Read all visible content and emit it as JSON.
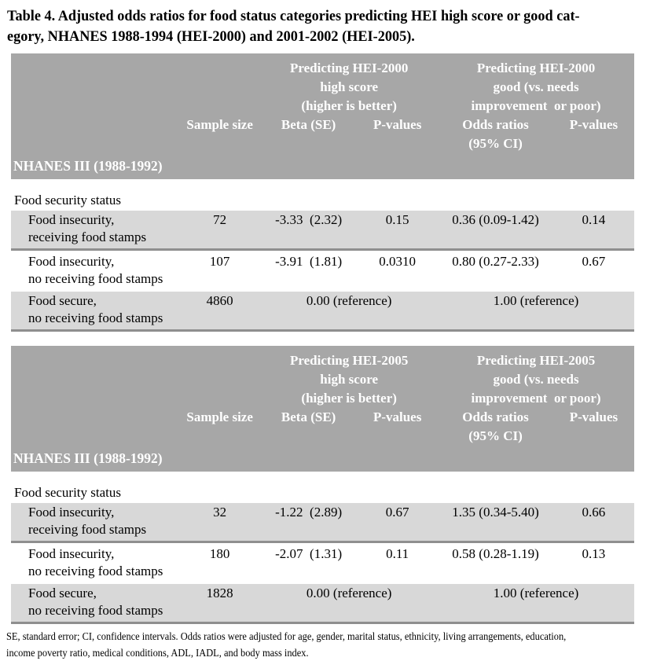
{
  "title": {
    "line1": "Table 4. Adjusted odds ratios for food status categories predicting HEI high score or good cat-",
    "line2": "egory, NHANES 1988-1994 (HEI-2000) and 2001-2002 (HEI-2005)."
  },
  "colors": {
    "header_band": "#a7a7a7",
    "shaded_row": "#d8d8d8",
    "separator_line": "#8f8f8f",
    "header_text": "#ffffff",
    "body_text": "#000000"
  },
  "tables": [
    {
      "group_high": {
        "line1": "Predicting HEI-2000",
        "line2": "high score",
        "line3": "(higher is better)"
      },
      "group_good": {
        "line1": "Predicting HEI-2000",
        "line2": "good (vs. needs",
        "line3": "improvement or poor)"
      },
      "columns": {
        "sample": "Sample size",
        "beta": "Beta (SE)",
        "p1": "P-values",
        "odds_line1": "Odds ratios",
        "odds_line2": "(95% CI)",
        "p2": "P-values"
      },
      "survey_label": "NHANES III (1988-1992)",
      "section_label": "Food security status",
      "rows": [
        {
          "label1": "Food insecurity,",
          "label2": "receiving food stamps",
          "sample": "72",
          "beta": "-3.33 (2.32)",
          "p1": "0.15",
          "odds": "0.36 (0.09-1.42)",
          "p2": "0.14"
        },
        {
          "label1": "Food insecurity,",
          "label2": "no receiving food stamps",
          "sample": "107",
          "beta": "-3.91 (1.81)",
          "p1": "0.0310",
          "odds": "0.80 (0.27-2.33)",
          "p2": "0.67"
        },
        {
          "label1": "Food secure,",
          "label2": "no receiving food stamps",
          "sample": "4860",
          "beta_ref": "0.00 (reference)",
          "odds_ref": "1.00 (reference)"
        }
      ]
    },
    {
      "group_high": {
        "line1": "Predicting HEI-2005",
        "line2": "high score",
        "line3": "(higher is better)"
      },
      "group_good": {
        "line1": "Predicting HEI-2005",
        "line2": "good (vs. needs",
        "line3": "improvement or poor)"
      },
      "columns": {
        "sample": "Sample size",
        "beta": "Beta (SE)",
        "p1": "P-values",
        "odds_line1": "Odds ratios",
        "odds_line2": "(95% CI)",
        "p2": "P-values"
      },
      "survey_label": "NHANES III (1988-1992)",
      "section_label": "Food security status",
      "rows": [
        {
          "label1": "Food insecurity,",
          "label2": "receiving food stamps",
          "sample": "32",
          "beta": "-1.22 (2.89)",
          "p1": "0.67",
          "odds": "1.35 (0.34-5.40)",
          "p2": "0.66"
        },
        {
          "label1": "Food insecurity,",
          "label2": "no receiving food stamps",
          "sample": "180",
          "beta": "-2.07 (1.31)",
          "p1": "0.11",
          "odds": "0.58 (0.28-1.19)",
          "p2": "0.13"
        },
        {
          "label1": "Food secure,",
          "label2": "no receiving food stamps",
          "sample": "1828",
          "beta_ref": "0.00 (reference)",
          "odds_ref": "1.00 (reference)"
        }
      ]
    }
  ],
  "footnote": {
    "line1": "SE, standard error; CI, confidence intervals. Odds ratios were adjusted for age, gender, marital status, ethnicity, living arrangements, education,",
    "line2": "income poverty ratio, medical conditions, ADL, IADL, and body mass index."
  }
}
